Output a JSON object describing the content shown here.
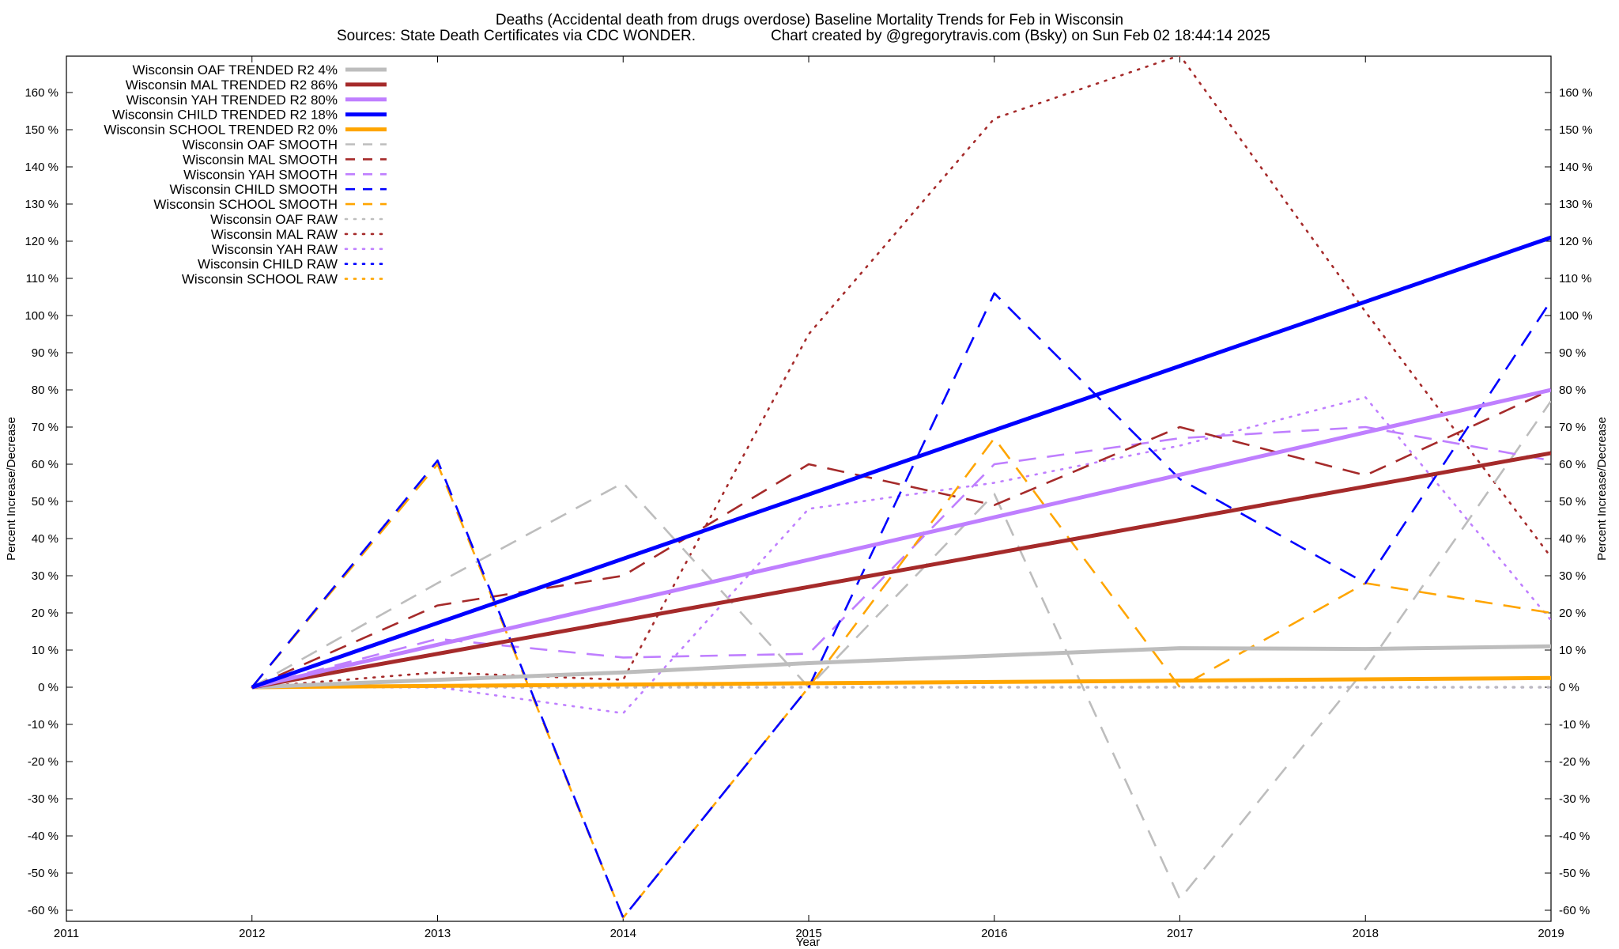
{
  "chart_data": {
    "type": "line",
    "title": "Deaths (Accidental death from drugs overdose)  Baseline Mortality Trends for Feb in Wisconsin",
    "subtitle_left": "Sources: State Death Certificates via CDC WONDER.",
    "subtitle_right": "Chart created by @gregorytravis.com (Bsky) on Sun Feb 02 18:44:14 2025",
    "xlabel": "Year",
    "ylabel_left": "Percent Increase/Decrease",
    "ylabel_right": "Percent Increase/Decrease",
    "xlim": [
      2011,
      2019
    ],
    "ylim": [
      -62,
      170
    ],
    "x_ticks": [
      "2011",
      "2012",
      "2013",
      "2014",
      "2015",
      "2016",
      "2017",
      "2018",
      "2019"
    ],
    "y_ticks_left": [
      "160 %",
      "150 %",
      "140 %",
      "130 %",
      "120 %",
      "110 %",
      "100 %",
      "90 %",
      "80 %",
      "70 %",
      "60 %",
      "50 %",
      "40 %",
      "30 %",
      "20 %",
      "10 %",
      "0 %",
      "-10 %",
      "-20 %",
      "-30 %",
      "-40 %",
      "-50 %",
      "-60 %"
    ],
    "y_ticks_right": [
      "160 %",
      "150 %",
      "140 %",
      "130 %",
      "120 %",
      "110 %",
      "100 %",
      "90 %",
      "80 %",
      "70 %",
      "60 %",
      "50 %",
      "40 %",
      "30 %",
      "20 %",
      "10 %",
      "0 %",
      "-10 %",
      "-20 %",
      "-30 %",
      "-40 %",
      "-50 %",
      "-60 %"
    ],
    "grid": false,
    "legend_position": "top-left",
    "series": [
      {
        "name": "Wisconsin OAF TRENDED R2   4%",
        "style": "trend",
        "color": "#bdbdbd",
        "x": [
          2012,
          2013,
          2014,
          2015,
          2016,
          2017,
          2018,
          2019
        ],
        "values": [
          0,
          2,
          4,
          6.5,
          8.5,
          10.5,
          10.3,
          11
        ]
      },
      {
        "name": "Wisconsin MAL TRENDED R2  86%",
        "style": "trend",
        "color": "#a52a2a",
        "x": [
          2012,
          2019
        ],
        "values": [
          0,
          63
        ]
      },
      {
        "name": "Wisconsin YAH TRENDED R2  80%",
        "style": "trend",
        "color": "#bf7fff",
        "x": [
          2012,
          2019
        ],
        "values": [
          0,
          80
        ]
      },
      {
        "name": "Wisconsin CHILD TRENDED R2  18%",
        "style": "trend",
        "color": "#0000ff",
        "x": [
          2012,
          2019
        ],
        "values": [
          0,
          121
        ]
      },
      {
        "name": "Wisconsin SCHOOL TRENDED R2   0%",
        "style": "trend",
        "color": "#ffa500",
        "x": [
          2012,
          2019
        ],
        "values": [
          0,
          2.5
        ]
      },
      {
        "name": "Wisconsin OAF SMOOTH",
        "style": "smooth",
        "color": "#bdbdbd",
        "x": [
          2012,
          2013,
          2014,
          2015,
          2016,
          2017,
          2018,
          2019
        ],
        "values": [
          0,
          28,
          55,
          0,
          52,
          -57,
          5,
          77
        ]
      },
      {
        "name": "Wisconsin MAL SMOOTH",
        "style": "smooth",
        "color": "#a52a2a",
        "x": [
          2012,
          2013,
          2014,
          2015,
          2016,
          2017,
          2018,
          2019
        ],
        "values": [
          0,
          22,
          30,
          60,
          49,
          70,
          57,
          80
        ]
      },
      {
        "name": "Wisconsin YAH SMOOTH",
        "style": "smooth",
        "color": "#bf7fff",
        "x": [
          2012,
          2013,
          2014,
          2015,
          2016,
          2017,
          2018,
          2019
        ],
        "values": [
          0,
          13,
          8,
          9,
          60,
          67,
          70,
          61
        ]
      },
      {
        "name": "Wisconsin CHILD SMOOTH",
        "style": "smooth",
        "color": "#0000ff",
        "x": [
          2012,
          2013,
          2014,
          2015,
          2016,
          2017,
          2018,
          2019
        ],
        "values": [
          0,
          61,
          -62,
          0,
          106,
          56,
          28,
          104
        ]
      },
      {
        "name": "Wisconsin SCHOOL SMOOTH",
        "style": "smooth",
        "color": "#ffa500",
        "x": [
          2012,
          2013,
          2014,
          2015,
          2016,
          2017,
          2018,
          2019
        ],
        "values": [
          0,
          60,
          -62,
          0,
          67,
          0,
          28,
          20
        ]
      },
      {
        "name": "Wisconsin OAF RAW",
        "style": "raw",
        "color": "#bdbdbd",
        "x": [
          2012,
          2013,
          2014,
          2015,
          2016,
          2017,
          2018,
          2019
        ],
        "values": [
          0,
          0,
          0,
          0,
          0,
          0,
          0,
          0
        ]
      },
      {
        "name": "Wisconsin MAL RAW",
        "style": "raw",
        "color": "#a52a2a",
        "x": [
          2012,
          2013,
          2014,
          2015,
          2016,
          2017,
          2018,
          2019
        ],
        "values": [
          0,
          4,
          2,
          95,
          153,
          170,
          101,
          35
        ]
      },
      {
        "name": "Wisconsin YAH RAW",
        "style": "raw",
        "color": "#bf7fff",
        "x": [
          2012,
          2013,
          2014,
          2015,
          2016,
          2017,
          2018,
          2019
        ],
        "values": [
          0,
          0,
          -7,
          48,
          55,
          65,
          78,
          18
        ]
      },
      {
        "name": "Wisconsin CHILD RAW",
        "style": "raw",
        "color": "#0000ff",
        "x": [
          2012,
          2019
        ],
        "values": [
          0,
          0
        ]
      },
      {
        "name": "Wisconsin SCHOOL RAW",
        "style": "raw",
        "color": "#ffa500",
        "x": [
          2012,
          2019
        ],
        "values": [
          0,
          0
        ]
      }
    ]
  }
}
